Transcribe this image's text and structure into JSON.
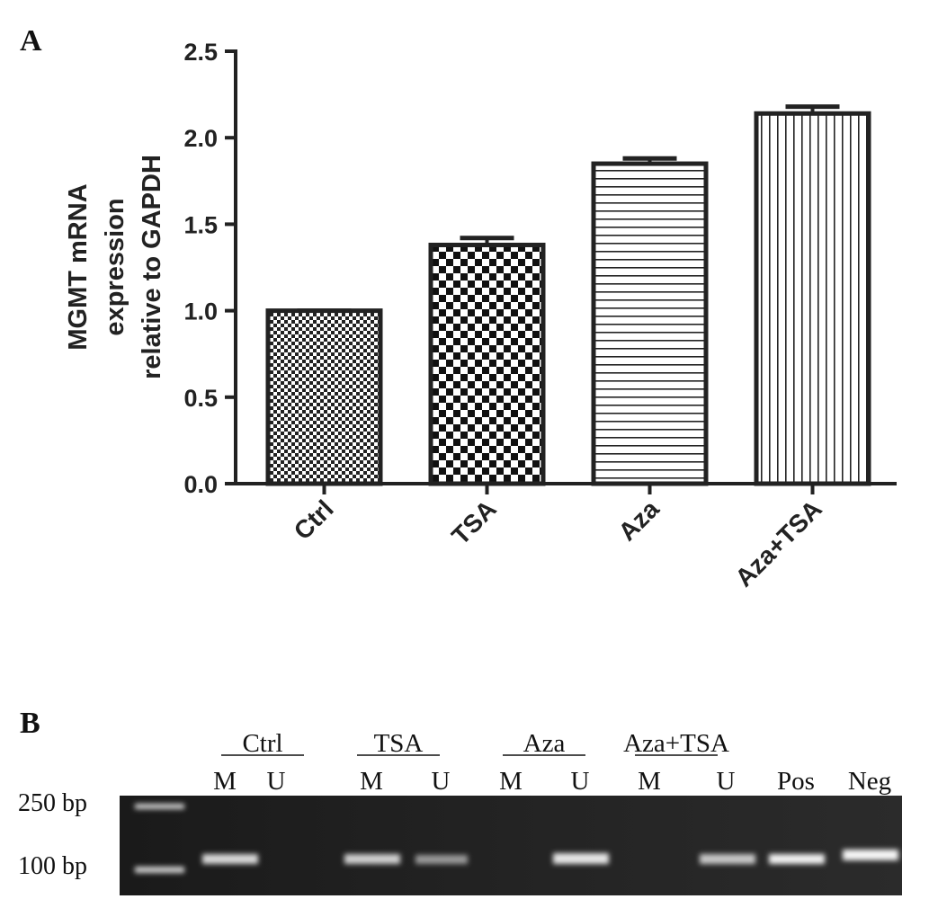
{
  "chart_data": {
    "type": "bar",
    "panel": "A",
    "ylabel": [
      "MGMT mRNA",
      "expression",
      "relative to GAPDH"
    ],
    "categories": [
      "Ctrl",
      "TSA",
      "Aza",
      "Aza+TSA"
    ],
    "values": [
      1.0,
      1.38,
      1.85,
      2.14
    ],
    "errors": [
      0,
      0.04,
      0.03,
      0.04
    ],
    "color": "#222222",
    "ylim": [
      0,
      2.5
    ],
    "yticks": [
      {
        "value": 0,
        "label": "0.0"
      },
      0.5,
      {
        "value": 1,
        "label": "1.0"
      },
      1.5,
      {
        "value": 2,
        "label": "2.0"
      },
      2.5
    ]
  },
  "gel": {
    "panel": "B",
    "group_labels": [
      "Ctrl",
      "TSA",
      "Aza",
      "Aza+TSA"
    ],
    "lane_labels": [
      "M",
      "U",
      "M",
      "U",
      "M",
      "U",
      "M",
      "U",
      "Pos",
      "Neg"
    ],
    "ladder_labels": [
      "250 bp",
      "100 bp"
    ]
  }
}
